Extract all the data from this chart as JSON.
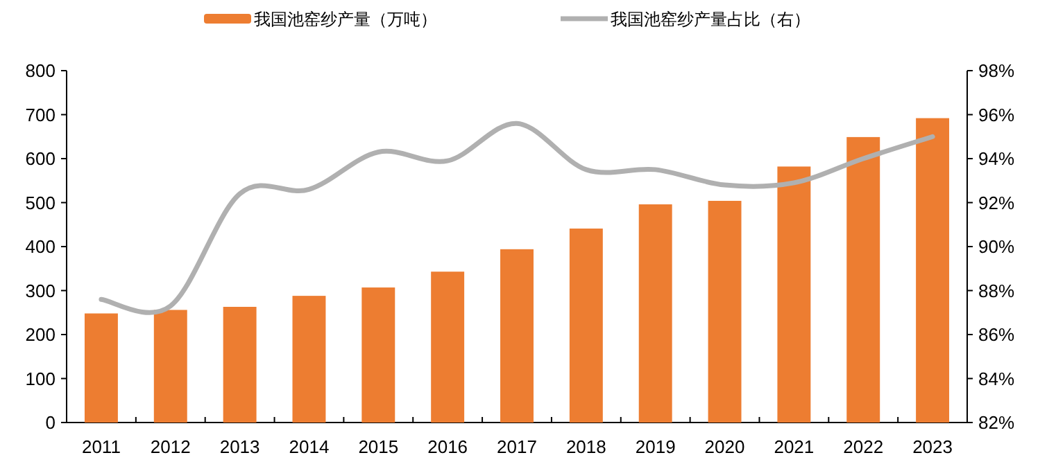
{
  "chart_data": {
    "type": "bar",
    "categories": [
      "2011",
      "2012",
      "2013",
      "2014",
      "2015",
      "2016",
      "2017",
      "2018",
      "2019",
      "2020",
      "2021",
      "2022",
      "2023"
    ],
    "series": [
      {
        "name": "我国池窑纱产量（万吨）",
        "color": "#ed7d31",
        "values": [
          248,
          256,
          263,
          288,
          307,
          343,
          394,
          441,
          496,
          504,
          582,
          649,
          692
        ]
      },
      {
        "name": "我国池窑纱产量占比（右）",
        "type": "line",
        "axis": "y2",
        "color": "#b0b0b0",
        "values": [
          87.6,
          87.3,
          92.4,
          92.6,
          94.3,
          93.9,
          95.6,
          93.5,
          93.5,
          92.8,
          92.9,
          94.0,
          95.0
        ]
      }
    ],
    "ylim": [
      0,
      800
    ],
    "yticks": [
      0,
      100,
      200,
      300,
      400,
      500,
      600,
      700,
      800
    ],
    "y2lim": [
      82,
      98
    ],
    "y2ticks": [
      {
        "value": 82,
        "label": "82%"
      },
      {
        "value": 84,
        "label": "84%"
      },
      {
        "value": 86,
        "label": "86%"
      },
      {
        "value": 88,
        "label": "88%"
      },
      {
        "value": 90,
        "label": "90%"
      },
      {
        "value": 92,
        "label": "92%"
      },
      {
        "value": 94,
        "label": "94%"
      },
      {
        "value": 96,
        "label": "96%"
      },
      {
        "value": 98,
        "label": "98%"
      }
    ],
    "grid": false,
    "legend": "top",
    "marker": "none",
    "line_style": "solid"
  }
}
